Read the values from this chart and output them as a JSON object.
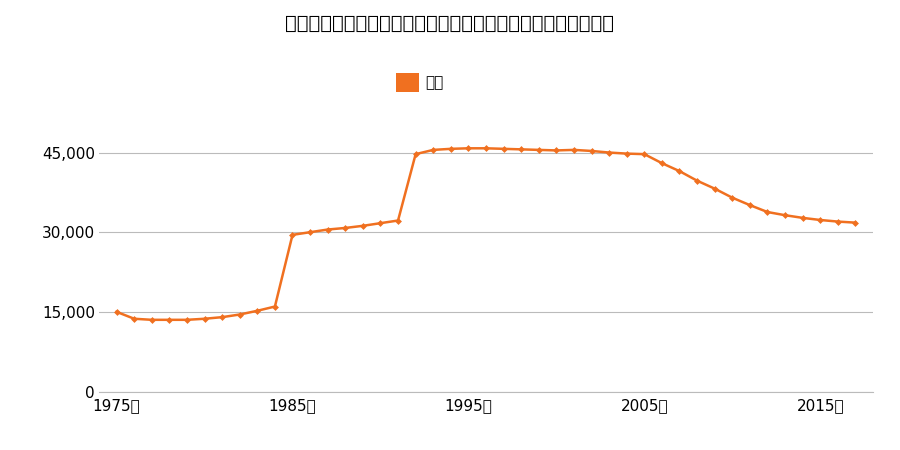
{
  "title": "三重県四日市市広永町字上高円２８８番１ほか２筆の地価推移",
  "legend_label": "価格",
  "line_color": "#f07020",
  "marker_color": "#f07020",
  "background_color": "#ffffff",
  "grid_color": "#bbbbbb",
  "years": [
    1975,
    1976,
    1977,
    1978,
    1979,
    1980,
    1981,
    1982,
    1983,
    1984,
    1985,
    1986,
    1987,
    1988,
    1989,
    1990,
    1991,
    1992,
    1993,
    1994,
    1995,
    1996,
    1997,
    1998,
    1999,
    2000,
    2001,
    2002,
    2003,
    2004,
    2005,
    2006,
    2007,
    2008,
    2009,
    2010,
    2011,
    2012,
    2013,
    2014,
    2015,
    2016,
    2017
  ],
  "values": [
    15000,
    13700,
    13500,
    13500,
    13500,
    13700,
    14000,
    14500,
    15200,
    16000,
    29500,
    30000,
    30500,
    30800,
    31200,
    31700,
    32200,
    44700,
    45500,
    45700,
    45800,
    45800,
    45700,
    45600,
    45500,
    45400,
    45500,
    45300,
    45000,
    44800,
    44700,
    43000,
    41500,
    39700,
    38200,
    36500,
    35100,
    33800,
    33200,
    32700,
    32300,
    32000,
    31800
  ],
  "yticks": [
    0,
    15000,
    30000,
    45000
  ],
  "ytick_labels": [
    "0",
    "15,000",
    "30,000",
    "45,000"
  ],
  "xtick_years": [
    1975,
    1985,
    1995,
    2005,
    2015
  ],
  "ylim": [
    0,
    50000
  ],
  "xlim": [
    1974,
    2018
  ]
}
